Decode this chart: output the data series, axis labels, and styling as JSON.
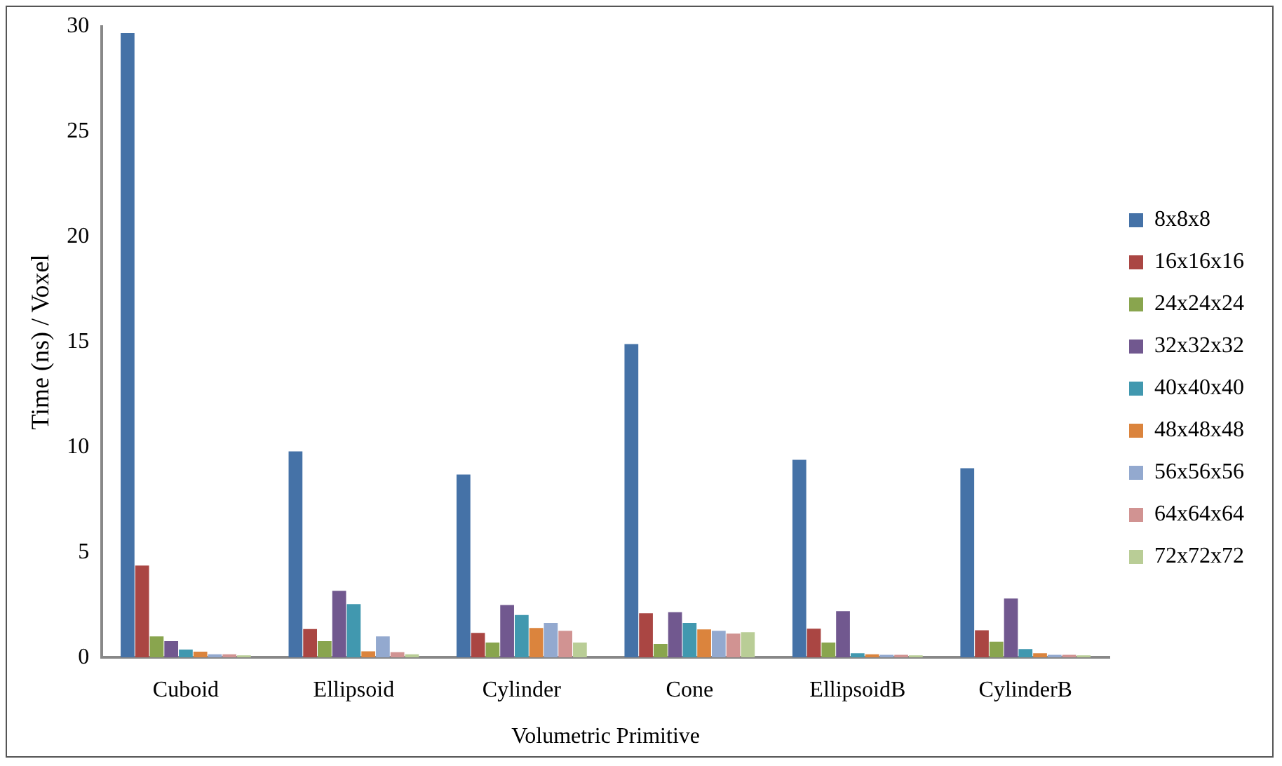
{
  "chart_data": {
    "type": "bar",
    "xlabel": "Volumetric Primitive",
    "ylabel": "Time (ns) / Voxel",
    "categories": [
      "Cuboid",
      "Ellipsoid",
      "Cylinder",
      "Cone",
      "EllipsoidB",
      "CylinderB"
    ],
    "ylim": [
      0,
      30
    ],
    "yticks": [
      0,
      5,
      10,
      15,
      20,
      25,
      30
    ],
    "grid": false,
    "legend": "right",
    "series": [
      {
        "name": "8x8x8",
        "color": "#4572a7",
        "values": [
          29.7,
          9.8,
          8.7,
          14.9,
          9.4,
          9.0
        ]
      },
      {
        "name": "16x16x16",
        "color": "#aa4643",
        "values": [
          4.37,
          1.35,
          1.17,
          2.1,
          1.37,
          1.29
        ]
      },
      {
        "name": "24x24x24",
        "color": "#89a54e",
        "values": [
          1.0,
          0.77,
          0.71,
          0.64,
          0.71,
          0.75
        ]
      },
      {
        "name": "32x32x32",
        "color": "#71588f",
        "values": [
          0.77,
          3.17,
          2.49,
          2.15,
          2.2,
          2.8
        ]
      },
      {
        "name": "40x40x40",
        "color": "#4198af",
        "values": [
          0.37,
          2.53,
          2.02,
          1.64,
          0.2,
          0.4
        ]
      },
      {
        "name": "48x48x48",
        "color": "#db843d",
        "values": [
          0.27,
          0.29,
          1.4,
          1.33,
          0.15,
          0.2
        ]
      },
      {
        "name": "56x56x56",
        "color": "#93a9cf",
        "values": [
          0.15,
          1.0,
          1.64,
          1.27,
          0.12,
          0.12
        ]
      },
      {
        "name": "64x64x64",
        "color": "#d19392",
        "values": [
          0.15,
          0.25,
          1.27,
          1.13,
          0.12,
          0.12
        ]
      },
      {
        "name": "72x72x72",
        "color": "#b9cd96",
        "values": [
          0.1,
          0.15,
          0.71,
          1.2,
          0.1,
          0.1
        ]
      }
    ]
  }
}
